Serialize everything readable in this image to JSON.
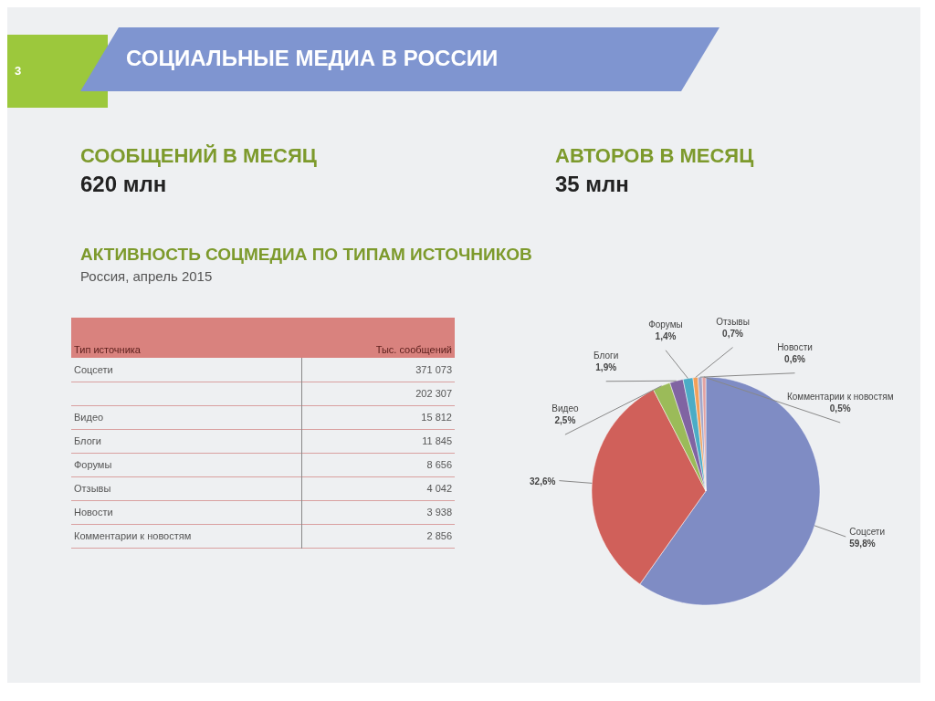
{
  "chart_data": [
    {
      "type": "other",
      "title": "СОЦИАЛЬНЫЕ МЕДИА В РОССИИ",
      "annotations": [
        "3",
        "СООБЩЕНИЙ В МЕСЯЦ",
        "620 млн",
        "АВТОРОВ В МЕСЯЦ",
        "35 млн"
      ]
    },
    {
      "type": "other",
      "title": "АКТИВНОСТЬ СОЦМЕДИА ПО ТИПАМ ИСТОЧНИКОВ",
      "subtitle": "Россия, апрель 2015",
      "annotations": [
        "Тип источника",
        "Тыс. сообщений"
      ],
      "categories": [
        "Соцсети",
        null,
        "Видео",
        "Блоги",
        "Форумы",
        "Отзывы",
        "Новости",
        "Комментарии к новостям"
      ],
      "values": [
        371073,
        202307,
        15812,
        11845,
        8656,
        4042,
        3938,
        2856
      ],
      "data_labels": true
    },
    {
      "type": "pie",
      "categories": [
        "Соцсети",
        null,
        "Видео",
        "Блоги",
        "Форумы",
        "Отзывы",
        "Новости",
        "Комментарии к новостям"
      ],
      "values": [
        59.8,
        32.6,
        2.5,
        1.9,
        1.4,
        0.7,
        0.6,
        0.5
      ],
      "value_labels": [
        "59,8%",
        "32,6%",
        "2,5%",
        "1,9%",
        "1,4%",
        "0,7%",
        "0,6%",
        "0,5%"
      ],
      "colors": [
        "#7f8cc4",
        "#d0605a",
        "#9bbb59",
        "#8064a2",
        "#4bacc6",
        "#f2a05a",
        "#a3a7c9",
        "#e3a3a3"
      ]
    }
  ]
}
